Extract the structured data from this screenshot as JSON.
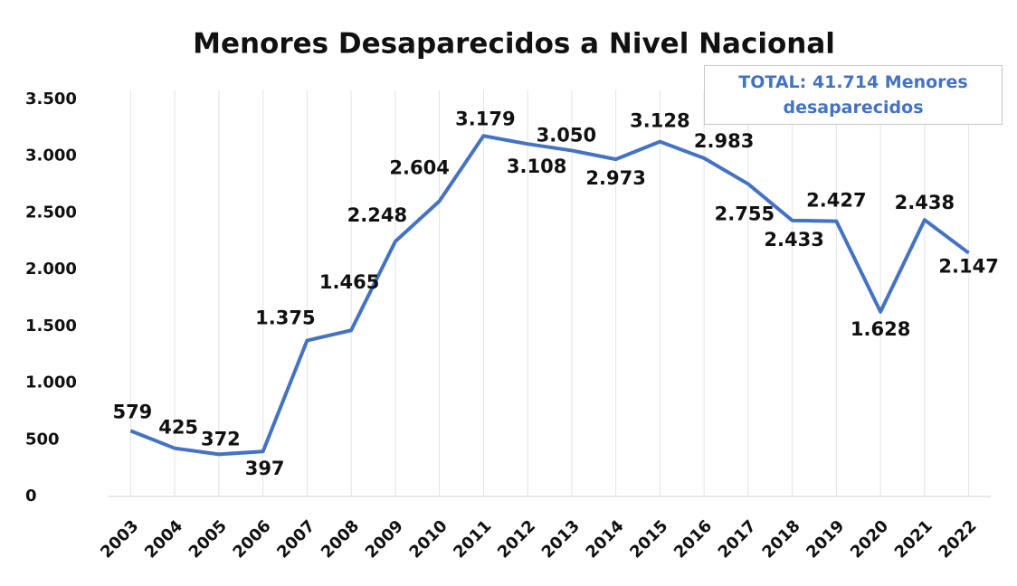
{
  "chart_data": {
    "type": "line",
    "title": "Menores Desaparecidos a Nivel Nacional",
    "annotation": "TOTAL: 41.714 Menores desaparecidos",
    "categories": [
      "2003",
      "2004",
      "2005",
      "2006",
      "2007",
      "2008",
      "2009",
      "2010",
      "2011",
      "2012",
      "2013",
      "2014",
      "2015",
      "2016",
      "2017",
      "2018",
      "2019",
      "2020",
      "2021",
      "2022"
    ],
    "series": [
      {
        "name": "Menores desaparecidos",
        "color": "#4472c4",
        "values": [
          579,
          425,
          372,
          397,
          1375,
          1465,
          2248,
          2604,
          3179,
          3108,
          3050,
          2973,
          3128,
          2983,
          2755,
          2433,
          2427,
          1628,
          2438,
          2147
        ],
        "value_labels": [
          "579",
          "425",
          "372",
          "397",
          "1.375",
          "1.465",
          "2.248",
          "2.604",
          "3.179",
          "3.108",
          "3.050",
          "2.973",
          "3.128",
          "2.983",
          "2.755",
          "2.433",
          "2.427",
          "1.628",
          "2.438",
          "2.147"
        ]
      }
    ],
    "ylim": [
      0,
      3500
    ],
    "yticks": [
      0,
      500,
      {
        "value": 1000,
        "label": "1.000"
      },
      {
        "value": 1500,
        "label": "1.500"
      },
      {
        "value": 2000,
        "label": "2.000"
      },
      {
        "value": 2500,
        "label": "2.500"
      },
      {
        "value": 3000,
        "label": "3.000"
      },
      {
        "value": 3500,
        "label": "3.500"
      }
    ],
    "grid": "x"
  }
}
